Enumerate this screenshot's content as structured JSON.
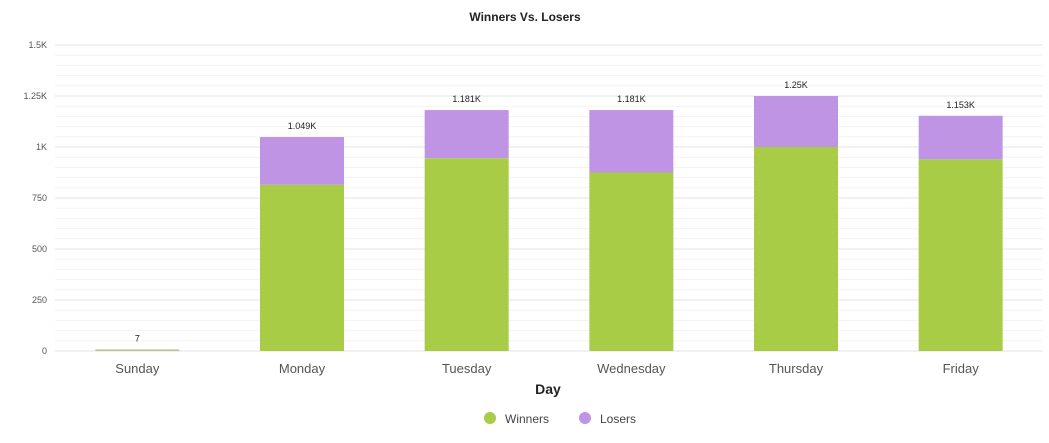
{
  "chart_data": {
    "type": "bar",
    "stacked": true,
    "title": "Winners Vs. Losers",
    "xlabel": "Day",
    "ylabel": "",
    "categories": [
      "Sunday",
      "Monday",
      "Tuesday",
      "Wednesday",
      "Thursday",
      "Friday"
    ],
    "series": [
      {
        "name": "Winners",
        "color": "#a8cc45",
        "values": [
          4,
          815,
          945,
          875,
          1000,
          940
        ]
      },
      {
        "name": "Losers",
        "color": "#c094e4",
        "values": [
          3,
          234,
          236,
          306,
          250,
          213
        ]
      }
    ],
    "totals_labels": [
      "7",
      "1.049K",
      "1.181K",
      "1.181K",
      "1.25K",
      "1.153K"
    ],
    "ylim": [
      0,
      1500
    ],
    "yticks": [
      0,
      250,
      500,
      750,
      1000,
      1250,
      1500
    ],
    "ytick_labels": [
      "0",
      "250",
      "500",
      "750",
      "1K",
      "1.25K",
      "1.5K"
    ],
    "grid": true,
    "legend_position": "bottom-center"
  }
}
